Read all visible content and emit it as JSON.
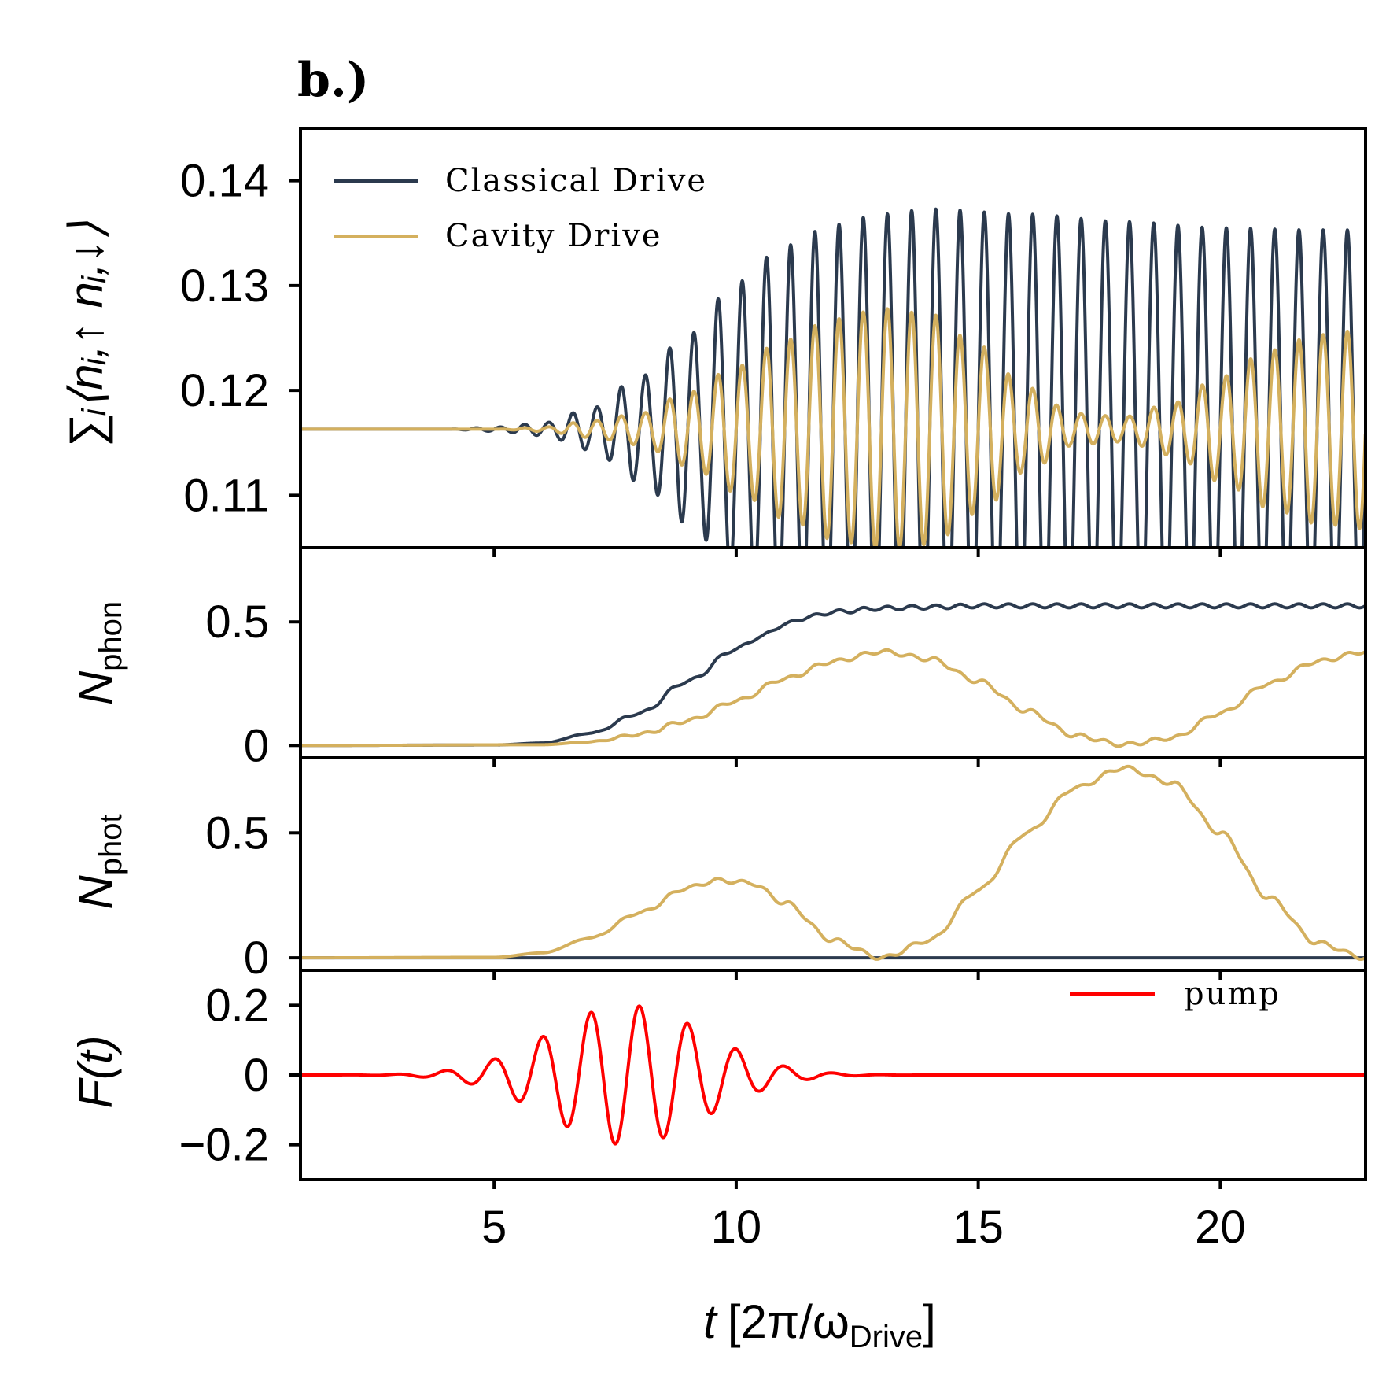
{
  "panel_letter": "b.)",
  "colors": {
    "classical": "#2b3a4e",
    "cavity": "#d4b05e",
    "pump": "#ff0000",
    "frame": "#000000"
  },
  "chart_data": [
    {
      "type": "line",
      "panel": "double-occupancy",
      "ylabel": "∑ᵢ⟨nᵢ,↑ nᵢ,↓⟩",
      "xlim": [
        1,
        23
      ],
      "ylim": [
        0.105,
        0.145
      ],
      "yticks": [
        0.11,
        0.12,
        0.13,
        0.14
      ],
      "ytick_labels": [
        "0.11",
        "0.12",
        "0.13",
        "0.14"
      ],
      "legend_position": "top-left",
      "series": [
        {
          "name": "Classical Drive",
          "color": "#2b3a4e",
          "baseline": 0.1163,
          "envelope": {
            "t": [
              1,
              4,
              5,
              6,
              7,
              8,
              9,
              10,
              11,
              12,
              13,
              14,
              16,
              18,
              20,
              22,
              23
            ],
            "amp": [
              0,
              0,
              0.0002,
              0.0006,
              0.002,
              0.005,
              0.009,
              0.014,
              0.0175,
              0.0195,
              0.0205,
              0.021,
              0.0205,
              0.0198,
              0.0192,
              0.019,
              0.019
            ]
          },
          "period": 0.5
        },
        {
          "name": "Cavity Drive",
          "color": "#d4b05e",
          "baseline": 0.1163,
          "envelope": {
            "t": [
              1,
              5,
              6,
              7,
              8,
              9,
              10,
              11,
              12,
              13,
              14,
              15,
              16,
              17,
              18,
              19,
              20,
              21,
              22,
              23
            ],
            "amp": [
              0,
              0,
              0.0002,
              0.0008,
              0.0015,
              0.0035,
              0.006,
              0.0085,
              0.0105,
              0.0115,
              0.011,
              0.008,
              0.004,
              0.0015,
              0.0012,
              0.0025,
              0.005,
              0.0075,
              0.009,
              0.0095
            ]
          },
          "period": 0.5
        }
      ]
    },
    {
      "type": "line",
      "panel": "phonon-number",
      "ylabel": "N",
      "ylabel_sub": "phon",
      "xlim": [
        1,
        23
      ],
      "ylim": [
        -0.05,
        0.8
      ],
      "yticks": [
        0,
        0.5
      ],
      "ytick_labels": [
        "0",
        "0.5"
      ],
      "series": [
        {
          "name": "Classical Drive",
          "color": "#2b3a4e",
          "x": [
            1,
            5,
            6,
            7,
            8,
            9,
            10,
            10.5,
            11,
            11.5,
            12,
            13,
            14,
            15,
            16,
            18,
            20,
            22,
            23
          ],
          "y": [
            0,
            0.002,
            0.01,
            0.05,
            0.13,
            0.26,
            0.39,
            0.44,
            0.49,
            0.52,
            0.54,
            0.555,
            0.56,
            0.565,
            0.565,
            0.565,
            0.565,
            0.565,
            0.565
          ]
        },
        {
          "name": "Cavity Drive",
          "color": "#d4b05e",
          "x": [
            1,
            6,
            7,
            8,
            9,
            10,
            11,
            12,
            13,
            14,
            15,
            16,
            17,
            18,
            19,
            20,
            21,
            22,
            23
          ],
          "y": [
            0,
            0.003,
            0.015,
            0.045,
            0.1,
            0.18,
            0.27,
            0.34,
            0.38,
            0.35,
            0.26,
            0.14,
            0.04,
            0.003,
            0.03,
            0.13,
            0.25,
            0.34,
            0.38
          ]
        }
      ]
    },
    {
      "type": "line",
      "panel": "photon-number",
      "ylabel": "N",
      "ylabel_sub": "phot",
      "xlim": [
        1,
        23
      ],
      "ylim": [
        -0.05,
        0.8
      ],
      "yticks": [
        0,
        0.5
      ],
      "ytick_labels": [
        "0",
        "0.5"
      ],
      "series": [
        {
          "name": "Classical Drive",
          "color": "#2b3a4e",
          "x": [
            1,
            23
          ],
          "y": [
            0,
            0
          ]
        },
        {
          "name": "Cavity Drive",
          "color": "#d4b05e",
          "x": [
            1,
            5,
            6,
            7,
            8,
            9,
            9.6,
            10.3,
            11,
            12,
            13,
            14,
            15,
            16,
            17,
            18,
            19,
            20,
            21,
            22,
            23
          ],
          "y": [
            0,
            0.002,
            0.02,
            0.08,
            0.18,
            0.28,
            0.31,
            0.3,
            0.22,
            0.07,
            0.0,
            0.07,
            0.27,
            0.5,
            0.68,
            0.76,
            0.7,
            0.5,
            0.24,
            0.06,
            0.0
          ]
        }
      ]
    },
    {
      "type": "line",
      "panel": "pump",
      "ylabel": "F(t)",
      "xlabel": "t [2π/ωDrive]",
      "xlim": [
        1,
        23
      ],
      "ylim": [
        -0.3,
        0.3
      ],
      "xticks": [
        5,
        10,
        15,
        20
      ],
      "xtick_labels": [
        "5",
        "10",
        "15",
        "20"
      ],
      "yticks": [
        -0.2,
        0,
        0.2
      ],
      "ytick_labels": [
        "−0.2",
        "0",
        "0.2"
      ],
      "legend_position": "top-right",
      "series": [
        {
          "name": "pump",
          "color": "#ff0000",
          "function": "A*exp(-(t-t0)^2/(2*s^2))*sin(2*pi*(t-t0))",
          "A": 0.2,
          "t0": 7.75,
          "s": 1.6,
          "cutoff": 14.75
        }
      ]
    }
  ],
  "xlabel_parts": {
    "var": "t",
    "bracket_open": "[2π/ω",
    "sub": "Drive",
    "bracket_close": "]"
  }
}
